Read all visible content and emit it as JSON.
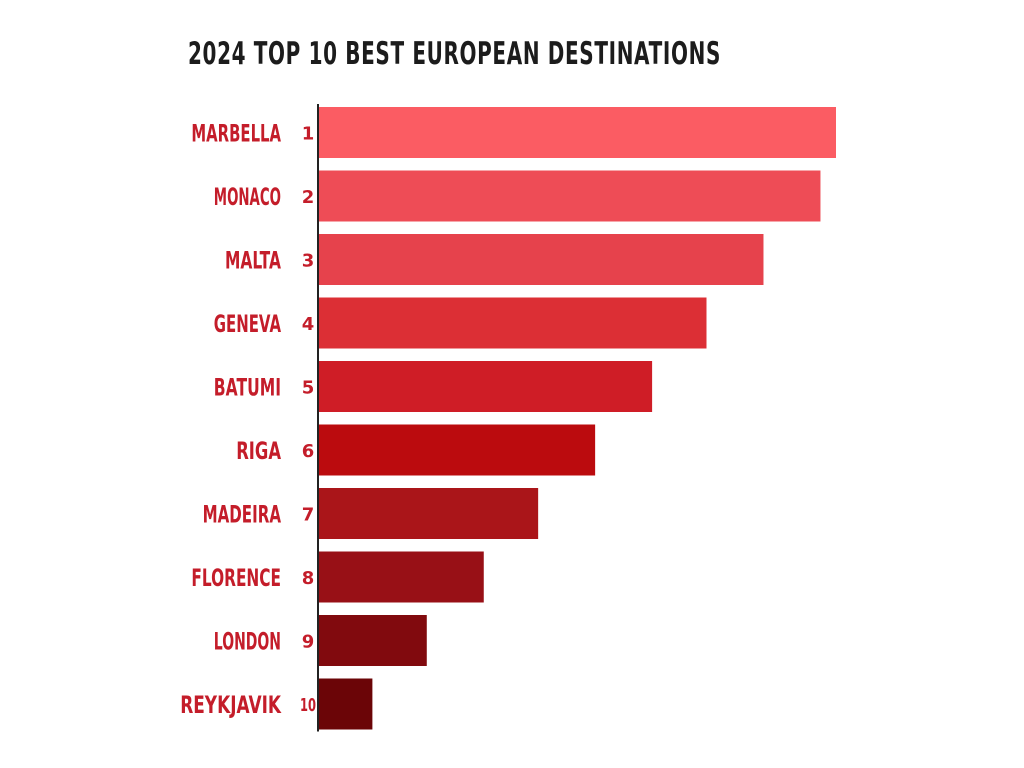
{
  "chart_data": {
    "type": "bar",
    "orientation": "horizontal",
    "title": "2024 TOP 10 BEST EUROPEAN DESTINATIONS",
    "categories": [
      "MARBELLA",
      "MONACO",
      "MALTA",
      "GENEVA",
      "BATUMI",
      "RIGA",
      "MADEIRA",
      "FLORENCE",
      "LONDON",
      "REYKJAVIK"
    ],
    "ranks": [
      "1",
      "2",
      "3",
      "4",
      "5",
      "6",
      "7",
      "8",
      "9",
      "10"
    ],
    "values": [
      10,
      9.7,
      8.6,
      7.5,
      6.45,
      5.35,
      4.25,
      3.2,
      2.1,
      1.05
    ],
    "xlim": [
      0,
      10
    ],
    "grid": false,
    "colors": {
      "bars": [
        "#fb5c63",
        "#ee4c56",
        "#e6424c",
        "#dc2f35",
        "#cf1d26",
        "#bb0b0e",
        "#aa1519",
        "#981016",
        "#810a0e",
        "#6b0507"
      ],
      "label_text": "#c41d2a",
      "rank_text": "#c41d2a",
      "title_text": "#1c1c1c",
      "axis_line": "#222222"
    }
  }
}
